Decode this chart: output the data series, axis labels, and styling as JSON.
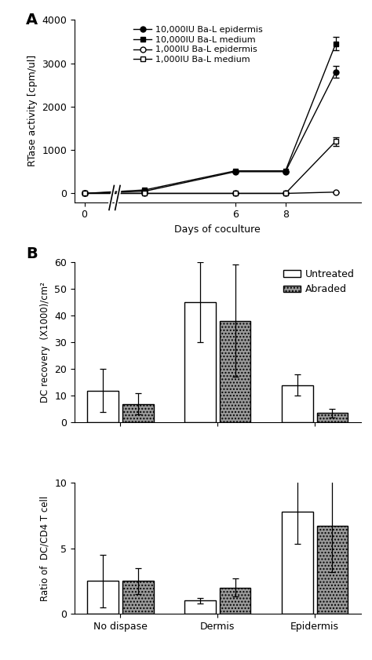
{
  "panel_A": {
    "ylabel": "RTase activity [cpm/ul]",
    "xlabel": "Days of coculture",
    "ylim": [
      -200,
      4000
    ],
    "yticks": [
      0,
      1000,
      2000,
      3000,
      4000
    ],
    "xlim_disp": [
      -0.2,
      5.5
    ],
    "x_real": [
      0,
      3,
      6,
      8,
      10
    ],
    "x_disp": [
      0.0,
      1.2,
      3.0,
      4.0,
      5.0
    ],
    "xtick_real": [
      0,
      6,
      8
    ],
    "xtick_disp": [
      0.0,
      3.0,
      4.0
    ],
    "series": [
      {
        "label": "10,000IU Ba-L epidermis",
        "x": [
          0,
          3,
          6,
          8,
          10
        ],
        "y": [
          0,
          50,
          500,
          500,
          2800
        ],
        "yerr": [
          0,
          0,
          0,
          0,
          130
        ],
        "marker": "o",
        "filled": true
      },
      {
        "label": "10,000IU Ba-L medium",
        "x": [
          0,
          3,
          6,
          8,
          10
        ],
        "y": [
          0,
          80,
          520,
          520,
          3450
        ],
        "yerr": [
          0,
          0,
          0,
          0,
          160
        ],
        "marker": "s",
        "filled": true
      },
      {
        "label": "1,000IU Ba-L epidermis",
        "x": [
          0,
          3,
          6,
          8,
          10
        ],
        "y": [
          0,
          0,
          0,
          0,
          30
        ],
        "yerr": [
          0,
          0,
          0,
          0,
          0
        ],
        "marker": "o",
        "filled": false
      },
      {
        "label": "1,000IU Ba-L medium",
        "x": [
          0,
          3,
          6,
          8,
          10
        ],
        "y": [
          0,
          0,
          0,
          0,
          1200
        ],
        "yerr": [
          0,
          0,
          0,
          0,
          100
        ],
        "marker": "s",
        "filled": false
      }
    ]
  },
  "panel_B_top": {
    "ylabel": "DC recovery  (X1000)/cm²",
    "ylim": [
      0,
      60
    ],
    "yticks": [
      0,
      10,
      20,
      30,
      40,
      50,
      60
    ],
    "categories": [
      "No dispase",
      "Dermis",
      "Epidermis"
    ],
    "untreated": [
      12,
      45,
      14
    ],
    "untreated_err": [
      8,
      15,
      4
    ],
    "abraded": [
      7,
      38,
      3.5
    ],
    "abraded_err": [
      4,
      21,
      1.5
    ]
  },
  "panel_B_bot": {
    "ylabel": "Ratio of  DC/CD4 T cell",
    "ylim": [
      0,
      10
    ],
    "yticks": [
      0,
      5,
      10
    ],
    "categories": [
      "No dispase",
      "Dermis",
      "Epidermis"
    ],
    "untreated": [
      2.5,
      1.0,
      7.8
    ],
    "untreated_err": [
      2.0,
      0.2,
      2.5
    ],
    "abraded": [
      2.5,
      2.0,
      6.7
    ],
    "abraded_err": [
      1.0,
      0.7,
      3.5
    ]
  },
  "colors": {
    "black": "#000000",
    "white": "#ffffff",
    "abraded_fill": "#999999",
    "background": "#ffffff"
  }
}
